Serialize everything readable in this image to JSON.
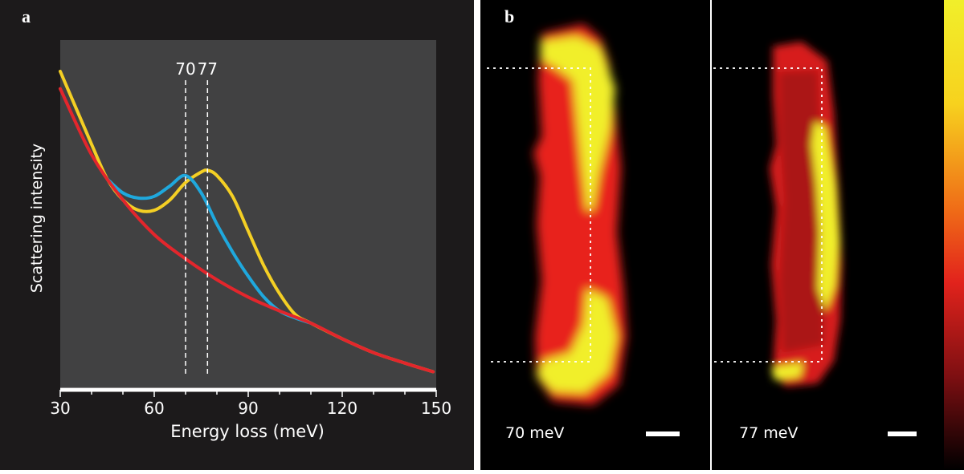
{
  "panel_a": {
    "label": "a"
  },
  "panel_b": {
    "label": "b",
    "maps": [
      {
        "energy_label": "70 meV"
      },
      {
        "energy_label": "77 meV"
      }
    ]
  },
  "colors": {
    "figure_background": "#1c1a1b",
    "plot_background": "#414142",
    "background_series": "#e3262c",
    "series_70": "#1fa8dd",
    "series_77": "#f4cf24",
    "map_low": "#000000",
    "map_mid": "#e8201e",
    "map_high": "#f1ef2a"
  },
  "chart_data": {
    "type": "line",
    "title": "",
    "xlabel": "Energy loss (meV)",
    "ylabel": "Scattering intensity",
    "xlim": [
      30,
      150
    ],
    "xticks": [
      30,
      60,
      90,
      120,
      150
    ],
    "ylim": [
      0,
      1
    ],
    "yticks": [],
    "grid": false,
    "markers": [
      {
        "x": 70,
        "label": "70"
      },
      {
        "x": 77,
        "label": "77"
      }
    ],
    "series": [
      {
        "color": "#f4cf24",
        "x": [
          30,
          40,
          45,
          50,
          55,
          60,
          65,
          70,
          75,
          77,
          80,
          85,
          90,
          95,
          100,
          105,
          110,
          120,
          130,
          140,
          149
        ],
        "y": [
          0.91,
          0.7,
          0.6,
          0.54,
          0.51,
          0.51,
          0.54,
          0.59,
          0.62,
          0.625,
          0.61,
          0.55,
          0.45,
          0.35,
          0.27,
          0.21,
          0.185,
          0.14,
          0.1,
          0.07,
          0.045
        ]
      },
      {
        "color": "#1fa8dd",
        "x": [
          45,
          50,
          55,
          60,
          65,
          70,
          75,
          80,
          85,
          90,
          95,
          100,
          105,
          110
        ],
        "y": [
          0.6,
          0.56,
          0.545,
          0.55,
          0.58,
          0.61,
          0.56,
          0.47,
          0.39,
          0.32,
          0.26,
          0.22,
          0.2,
          0.185
        ]
      },
      {
        "color": "#e3262c",
        "x": [
          30,
          40,
          50,
          60,
          70,
          80,
          90,
          100,
          110,
          120,
          130,
          140,
          149
        ],
        "y": [
          0.86,
          0.67,
          0.54,
          0.44,
          0.37,
          0.31,
          0.26,
          0.22,
          0.185,
          0.14,
          0.1,
          0.07,
          0.045
        ]
      }
    ]
  }
}
